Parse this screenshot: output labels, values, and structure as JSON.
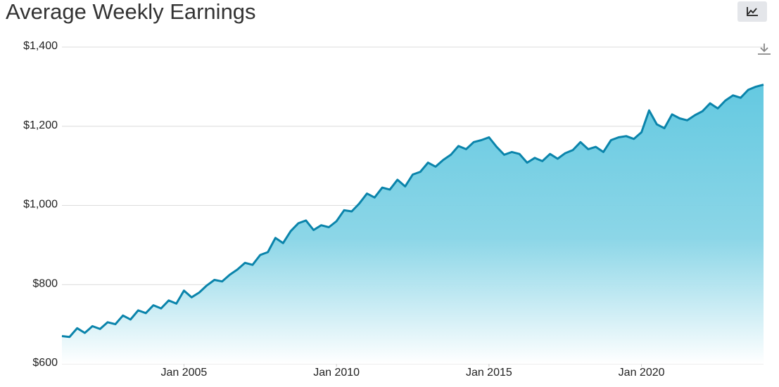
{
  "chart_data": {
    "type": "area",
    "title": "Average Weekly Earnings",
    "x": [
      "2001-01",
      "2001-04",
      "2001-07",
      "2001-10",
      "2002-01",
      "2002-04",
      "2002-07",
      "2002-10",
      "2003-01",
      "2003-04",
      "2003-07",
      "2003-10",
      "2004-01",
      "2004-04",
      "2004-07",
      "2004-10",
      "2005-01",
      "2005-04",
      "2005-07",
      "2005-10",
      "2006-01",
      "2006-04",
      "2006-07",
      "2006-10",
      "2007-01",
      "2007-04",
      "2007-07",
      "2007-10",
      "2008-01",
      "2008-04",
      "2008-07",
      "2008-10",
      "2009-01",
      "2009-04",
      "2009-07",
      "2009-10",
      "2010-01",
      "2010-04",
      "2010-07",
      "2010-10",
      "2011-01",
      "2011-04",
      "2011-07",
      "2011-10",
      "2012-01",
      "2012-04",
      "2012-07",
      "2012-10",
      "2013-01",
      "2013-04",
      "2013-07",
      "2013-10",
      "2014-01",
      "2014-04",
      "2014-07",
      "2014-10",
      "2015-01",
      "2015-04",
      "2015-07",
      "2015-10",
      "2016-01",
      "2016-04",
      "2016-07",
      "2016-10",
      "2017-01",
      "2017-04",
      "2017-07",
      "2017-10",
      "2018-01",
      "2018-04",
      "2018-07",
      "2018-10",
      "2019-01",
      "2019-04",
      "2019-07",
      "2019-10",
      "2020-01",
      "2020-04",
      "2020-07",
      "2020-10",
      "2021-01",
      "2021-04",
      "2021-07",
      "2021-10",
      "2022-01",
      "2022-04",
      "2022-07",
      "2022-10",
      "2023-01",
      "2023-04",
      "2023-07",
      "2023-10",
      "2024-01"
    ],
    "values": [
      670,
      668,
      690,
      678,
      695,
      688,
      705,
      700,
      722,
      712,
      735,
      728,
      748,
      740,
      760,
      752,
      785,
      768,
      780,
      798,
      812,
      808,
      825,
      838,
      855,
      850,
      875,
      882,
      918,
      905,
      935,
      955,
      962,
      938,
      950,
      945,
      960,
      988,
      985,
      1005,
      1030,
      1020,
      1045,
      1040,
      1065,
      1048,
      1078,
      1085,
      1108,
      1098,
      1115,
      1128,
      1150,
      1142,
      1160,
      1165,
      1172,
      1148,
      1128,
      1135,
      1130,
      1108,
      1120,
      1112,
      1130,
      1118,
      1132,
      1140,
      1160,
      1142,
      1148,
      1135,
      1165,
      1172,
      1175,
      1168,
      1185,
      1240,
      1205,
      1195,
      1230,
      1220,
      1215,
      1228,
      1238,
      1258,
      1245,
      1265,
      1278,
      1272,
      1292,
      1300,
      1305
    ],
    "color": "#0a84ab",
    "xlim": [
      "2001-01",
      "2024-01"
    ],
    "xticks": [
      {
        "value": "2005-01",
        "label": "Jan 2005"
      },
      {
        "value": "2010-01",
        "label": "Jan 2010"
      },
      {
        "value": "2015-01",
        "label": "Jan 2015"
      },
      {
        "value": "2020-01",
        "label": "Jan 2020"
      }
    ],
    "ylim": [
      600,
      1400
    ],
    "yticks": [
      {
        "value": 600,
        "label": "$600"
      },
      {
        "value": 800,
        "label": "$800"
      },
      {
        "value": 1000,
        "label": "$1,000"
      },
      {
        "value": 1200,
        "label": "$1,200"
      },
      {
        "value": 1400,
        "label": "$1,400"
      }
    ],
    "grid": true
  }
}
